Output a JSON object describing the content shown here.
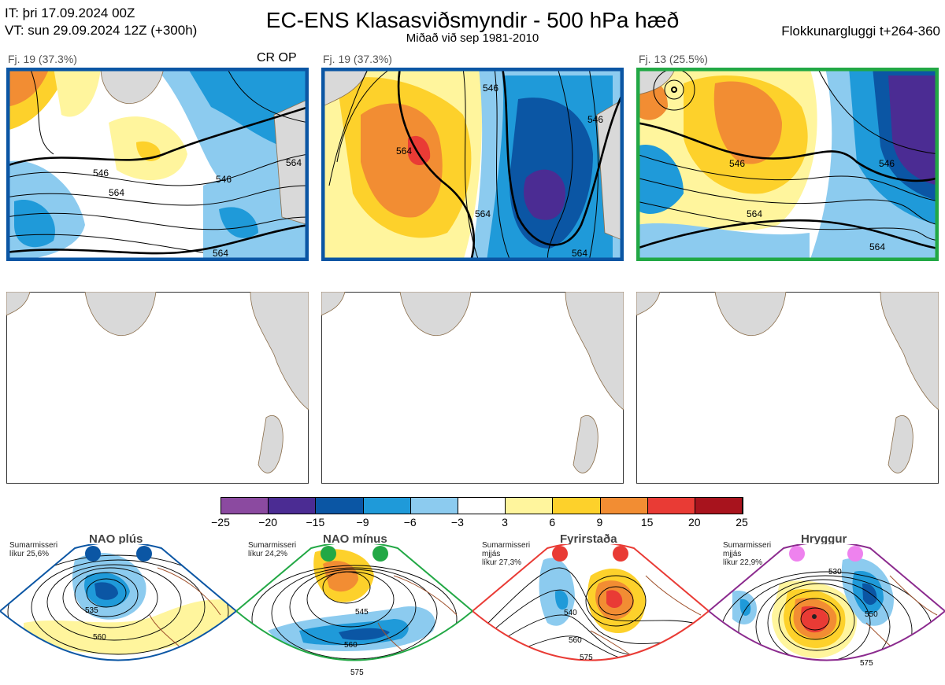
{
  "header": {
    "init_time": "IT: þri 17.09.2024 00Z",
    "valid_time": "VT: sun 29.09.2024 12Z  (+300h)",
    "title": "EC-ENS Klasasviðsmyndir - 500 hPa hæð",
    "subtitle": "Miðað við sep 1981-2010",
    "window": "Flokkunargluggi t+264-360"
  },
  "clusters": [
    {
      "label": "Fj. 19 (37.3%)",
      "tag": "CR OP",
      "frame_color": "#0b56a4",
      "contour_labels": [
        "546",
        "564",
        "546",
        "564",
        "564"
      ]
    },
    {
      "label": "Fj. 19 (37.3%)",
      "tag": "",
      "frame_color": "#0b56a4",
      "contour_labels": [
        "564",
        "546",
        "546",
        "564",
        "564"
      ]
    },
    {
      "label": "Fj. 13 (25.5%)",
      "tag": "",
      "frame_color": "#22a845",
      "contour_labels": [
        "546",
        "546",
        "564",
        "564"
      ]
    }
  ],
  "colorbar": {
    "ticks": [
      "−25",
      "−20",
      "−15",
      "−9",
      "−6",
      "−3",
      "3",
      "6",
      "9",
      "15",
      "20",
      "25"
    ],
    "colors": [
      "#8b4aa0",
      "#4b2c93",
      "#0b56a4",
      "#1f9ad9",
      "#8ccbef",
      "#ffffff",
      "#fff59d",
      "#fdd12b",
      "#f28d33",
      "#e93b35",
      "#a8131d"
    ]
  },
  "regimes": [
    {
      "name": "NAO plús",
      "desc": [
        "Sumarmisseri",
        "líkur 25,6%"
      ],
      "color": "#0b56a4",
      "contour_labels": [
        "535",
        "560"
      ]
    },
    {
      "name": "NAO mínus",
      "desc": [
        "Sumarmisseri",
        "líkur 24,2%"
      ],
      "color": "#22a845",
      "contour_labels": [
        "545",
        "560",
        "575"
      ]
    },
    {
      "name": "Fyrirstaða",
      "desc": [
        "Sumarmisseri",
        "mjjás",
        "líkur 27,3%"
      ],
      "color": "#e93b35",
      "contour_labels": [
        "540",
        "560",
        "575"
      ]
    },
    {
      "name": "Hryggur",
      "desc": [
        "Sumarmisseri",
        "mjjás",
        "líkur 22,9%"
      ],
      "color": "#8b2a8e",
      "contour_labels": [
        "530",
        "550",
        "575"
      ]
    }
  ]
}
